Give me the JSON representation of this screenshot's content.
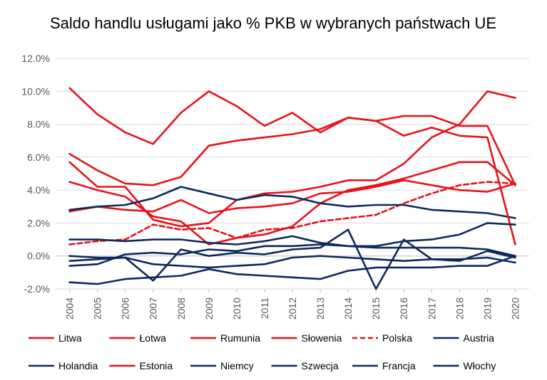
{
  "chart_data": {
    "type": "line",
    "title": "Saldo handlu usługami jako % PKB w wybranych państwach UE",
    "xlabel": "",
    "ylabel": "",
    "x": [
      "2004",
      "2005",
      "2006",
      "2007",
      "2008",
      "2009",
      "2010",
      "2011",
      "2012",
      "2013",
      "2014",
      "2015",
      "2016",
      "2017",
      "2018",
      "2019",
      "2020"
    ],
    "ylim": [
      -2,
      12
    ],
    "yticks": [
      -2,
      0,
      2,
      4,
      6,
      8,
      10,
      12
    ],
    "ytick_labels": [
      "-2.0%",
      "0.0%",
      "2.0%",
      "4.0%",
      "6.0%",
      "8.0%",
      "10.0%",
      "12.0%"
    ],
    "grid": true,
    "legend_position": "bottom",
    "colors": {
      "red": "#e8121b",
      "navy": "#0e2a5c",
      "grid": "#d9d9d9",
      "axis": "#bfbfbf"
    },
    "series": [
      {
        "name": "Litwa",
        "color": "#e8121b",
        "dashed": false,
        "values": [
          2.7,
          3.0,
          2.8,
          2.7,
          3.4,
          2.6,
          2.9,
          3.0,
          3.2,
          3.8,
          3.9,
          4.2,
          4.6,
          4.3,
          4.0,
          3.9,
          4.4
        ]
      },
      {
        "name": "Łotwa",
        "color": "#e8121b",
        "dashed": false,
        "values": [
          4.5,
          4.0,
          3.6,
          2.4,
          2.1,
          0.7,
          1.1,
          1.3,
          1.8,
          3.2,
          4.0,
          4.3,
          4.7,
          5.2,
          5.7,
          5.7,
          4.3
        ]
      },
      {
        "name": "Rumunia",
        "color": "#e8121b",
        "dashed": false,
        "values": [
          5.7,
          4.2,
          4.2,
          2.2,
          1.8,
          2.0,
          3.4,
          3.8,
          3.9,
          4.2,
          4.6,
          4.6,
          5.6,
          7.2,
          8.0,
          10.0,
          9.6
        ]
      },
      {
        "name": "Słowenia",
        "color": "#e8121b",
        "dashed": false,
        "values": [
          6.2,
          5.2,
          4.4,
          4.3,
          4.8,
          6.7,
          7.0,
          7.2,
          7.4,
          7.7,
          8.4,
          8.2,
          8.5,
          8.5,
          7.9,
          7.9,
          4.3
        ]
      },
      {
        "name": "Polska",
        "color": "#e8121b",
        "dashed": true,
        "values": [
          0.7,
          0.9,
          1.0,
          1.9,
          1.6,
          1.7,
          1.1,
          1.6,
          1.7,
          2.1,
          2.3,
          2.5,
          3.2,
          3.8,
          4.3,
          4.5,
          4.4
        ]
      },
      {
        "name": "Austria",
        "color": "#0e2a5c",
        "dashed": false,
        "values": [
          2.8,
          3.0,
          3.1,
          3.5,
          4.2,
          3.8,
          3.4,
          3.7,
          3.6,
          3.2,
          3.0,
          3.1,
          3.1,
          2.8,
          2.7,
          2.6,
          2.3
        ]
      },
      {
        "name": "Holandia",
        "color": "#0e2a5c",
        "dashed": false,
        "values": [
          -0.6,
          -0.5,
          0.1,
          0.2,
          0.1,
          0.4,
          0.3,
          0.6,
          0.6,
          0.7,
          0.6,
          0.5,
          0.5,
          0.5,
          0.5,
          0.4,
          0.0
        ]
      },
      {
        "name": "Estonia",
        "color": "#e8121b",
        "dashed": false,
        "values": [
          10.2,
          8.6,
          7.5,
          6.8,
          8.7,
          10.0,
          9.1,
          7.9,
          8.7,
          7.5,
          8.4,
          8.2,
          7.3,
          7.8,
          7.3,
          7.2,
          0.7
        ]
      },
      {
        "name": "Niemcy",
        "color": "#0e2a5c",
        "dashed": false,
        "values": [
          -1.6,
          -1.7,
          -1.4,
          -1.3,
          -1.2,
          -0.8,
          -1.1,
          -1.2,
          -1.3,
          -1.4,
          -0.9,
          -0.7,
          -0.7,
          -0.7,
          -0.6,
          -0.6,
          0.0
        ]
      },
      {
        "name": "Szwecja",
        "color": "#0e2a5c",
        "dashed": false,
        "values": [
          1.0,
          1.0,
          0.9,
          1.0,
          1.0,
          0.8,
          0.7,
          0.9,
          1.2,
          0.8,
          0.6,
          0.6,
          0.9,
          1.0,
          1.3,
          2.0,
          1.9
        ]
      },
      {
        "name": "Francja",
        "color": "#0e2a5c",
        "dashed": false,
        "values": [
          0.0,
          -0.1,
          -0.1,
          -1.5,
          0.4,
          0.0,
          0.2,
          0.1,
          0.4,
          0.5,
          1.6,
          -2.0,
          1.0,
          -0.2,
          -0.3,
          0.3,
          -0.1
        ]
      },
      {
        "name": "Włochy",
        "color": "#0e2a5c",
        "dashed": false,
        "values": [
          -0.3,
          -0.2,
          -0.1,
          -0.5,
          -0.6,
          -0.7,
          -0.6,
          -0.5,
          -0.1,
          0.0,
          -0.1,
          -0.2,
          -0.3,
          -0.2,
          -0.2,
          -0.1,
          -0.4
        ]
      }
    ]
  }
}
